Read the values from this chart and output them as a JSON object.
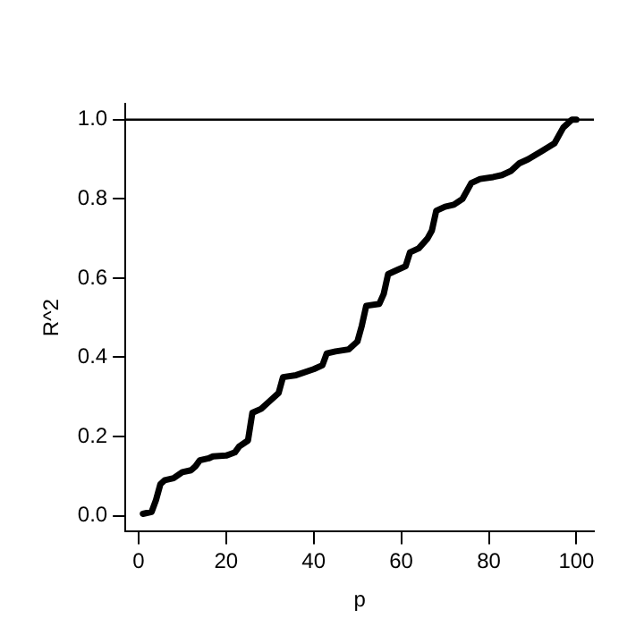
{
  "chart_data": {
    "type": "line",
    "xlabel": "p",
    "ylabel": "R^2",
    "xlim": [
      -3,
      104
    ],
    "ylim": [
      -0.04,
      1.04
    ],
    "xticks": [
      0,
      20,
      40,
      60,
      80,
      100
    ],
    "yticks": [
      {
        "value": 0,
        "label": "0.0"
      },
      0.2,
      0.4,
      0.6,
      0.8,
      {
        "value": 1,
        "label": "1.0"
      }
    ],
    "grid": false,
    "legend": false,
    "marker": "none",
    "line_style": "solid",
    "ref_lines": [
      {
        "axis": "y",
        "value": 1,
        "color": "#000000"
      }
    ],
    "series": [
      {
        "color": "#000000",
        "x": [
          1,
          3,
          4,
          5,
          6,
          8,
          10,
          12,
          13,
          14,
          16,
          17,
          20,
          22,
          23,
          25,
          26,
          28,
          30,
          32,
          33,
          36,
          40,
          42,
          43,
          45,
          48,
          50,
          51,
          52,
          55,
          56,
          57,
          59,
          61,
          62,
          64,
          66,
          67,
          68,
          70,
          72,
          74,
          76,
          78,
          81,
          83,
          85,
          87,
          89,
          92,
          95,
          97,
          99,
          100
        ],
        "values": [
          0.005,
          0.01,
          0.04,
          0.08,
          0.09,
          0.095,
          0.11,
          0.115,
          0.125,
          0.14,
          0.145,
          0.15,
          0.152,
          0.16,
          0.175,
          0.19,
          0.26,
          0.27,
          0.29,
          0.31,
          0.35,
          0.355,
          0.37,
          0.38,
          0.41,
          0.415,
          0.42,
          0.44,
          0.48,
          0.53,
          0.535,
          0.56,
          0.61,
          0.62,
          0.63,
          0.665,
          0.675,
          0.7,
          0.72,
          0.77,
          0.78,
          0.785,
          0.8,
          0.84,
          0.85,
          0.855,
          0.86,
          0.87,
          0.89,
          0.9,
          0.92,
          0.94,
          0.98,
          1.0,
          1.0
        ]
      }
    ]
  }
}
